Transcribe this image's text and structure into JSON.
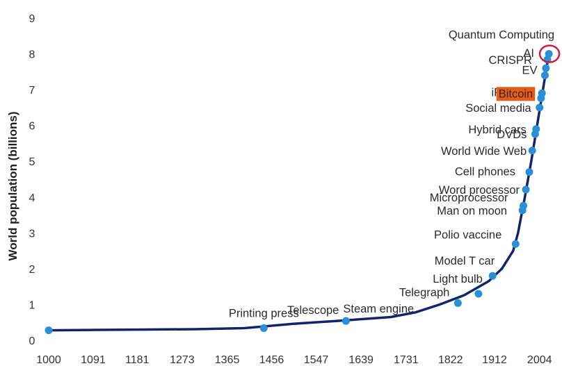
{
  "chart_data": {
    "type": "line",
    "title": "",
    "xlabel": "",
    "ylabel": "World population (billions)",
    "xlim": [
      1000,
      2030
    ],
    "ylim": [
      0,
      9
    ],
    "x_ticks": [
      "1000",
      "1091",
      "1181",
      "1273",
      "1365",
      "1456",
      "1547",
      "1639",
      "1731",
      "1822",
      "1912",
      "2004"
    ],
    "y_ticks": [
      "0",
      "1",
      "2",
      "3",
      "4",
      "5",
      "6",
      "7",
      "8",
      "9"
    ],
    "grid": false,
    "legend": "none",
    "colors": {
      "line": "#14246b",
      "marker": "#2a8fd6",
      "highlight_fill": "#ea5a19",
      "highlight_text": "#ffffff",
      "circle": "#c8203a"
    },
    "series": [
      {
        "x": [
          1000,
          1100,
          1200,
          1300,
          1400,
          1500,
          1600,
          1700,
          1750,
          1800,
          1850,
          1900,
          1927,
          1950,
          1960,
          1974,
          1987,
          1999,
          2011,
          2023
        ],
        "y": [
          0.28,
          0.29,
          0.3,
          0.31,
          0.34,
          0.46,
          0.55,
          0.65,
          0.78,
          1.0,
          1.26,
          1.65,
          2.0,
          2.5,
          3.0,
          4.0,
          5.0,
          6.0,
          7.0,
          8.0
        ]
      }
    ],
    "milestones": [
      {
        "label": "Printing press",
        "x": 1440,
        "y": 0.34
      },
      {
        "label": "Telescope",
        "x": 1608,
        "y": 0.54
      },
      {
        "label": "Steam engine",
        "x": 1608,
        "y": 0.54
      },
      {
        "label": "Telegraph",
        "x": 1837,
        "y": 1.04
      },
      {
        "label": "Light bulb",
        "x": 1879,
        "y": 1.3
      },
      {
        "label": "Model T car",
        "x": 1908,
        "y": 1.8
      },
      {
        "label": "Polio vaccine",
        "x": 1955,
        "y": 2.69
      },
      {
        "label": "Man on moon",
        "x": 1969,
        "y": 3.63
      },
      {
        "label": "Microprocessor",
        "x": 1971,
        "y": 3.76
      },
      {
        "label": "Word processor",
        "x": 1976,
        "y": 4.21
      },
      {
        "label": "Cell phones",
        "x": 1983,
        "y": 4.7
      },
      {
        "label": "World Wide Web",
        "x": 1989,
        "y": 5.3
      },
      {
        "label": "DVDs",
        "x": 1995,
        "y": 5.76
      },
      {
        "label": "Hybrid cars",
        "x": 1997,
        "y": 5.9
      },
      {
        "label": "Social media",
        "x": 2004,
        "y": 6.5
      },
      {
        "label": "iPhone",
        "x": 2007,
        "y": 6.76
      },
      {
        "label": "Bitcoin",
        "x": 2009,
        "y": 6.9,
        "highlight": true
      },
      {
        "label": "EV",
        "x": 2015,
        "y": 7.4
      },
      {
        "label": "CRISPR",
        "x": 2017,
        "y": 7.6
      },
      {
        "label": "AI",
        "x": 2020,
        "y": 7.84
      },
      {
        "label": "Quantum Computing",
        "x": 2023,
        "y": 8.0,
        "circled": true
      }
    ]
  }
}
